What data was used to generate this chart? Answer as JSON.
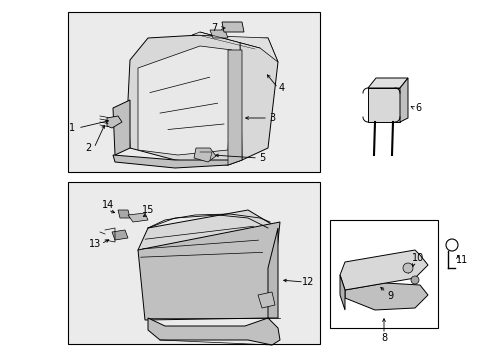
{
  "background_color": "#ffffff",
  "box1_fc": "#ebebeb",
  "box2_fc": "#ebebeb",
  "box3_fc": "#ffffff",
  "line_color": "#000000",
  "shading_light": "#d8d8d8",
  "shading_mid": "#c0c0c0",
  "shading_dark": "#a8a8a8"
}
